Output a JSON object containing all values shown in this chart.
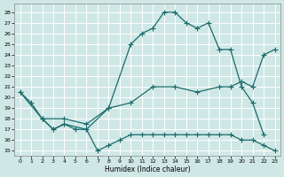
{
  "xlabel": "Humidex (Indice chaleur)",
  "bg_color": "#cfe8e6",
  "grid_color": "#b0d8d4",
  "line_color": "#1a6b6b",
  "xlim_min": -0.5,
  "xlim_max": 23.5,
  "ylim_min": 14.5,
  "ylim_max": 28.8,
  "xticks": [
    0,
    1,
    2,
    3,
    4,
    5,
    6,
    7,
    8,
    9,
    10,
    11,
    12,
    13,
    14,
    15,
    16,
    17,
    18,
    19,
    20,
    21,
    22,
    23
  ],
  "yticks": [
    15,
    16,
    17,
    18,
    19,
    20,
    21,
    22,
    23,
    24,
    25,
    26,
    27,
    28
  ],
  "curve1_x": [
    0,
    1,
    2,
    3,
    4,
    6,
    8,
    10,
    11,
    12,
    13,
    14,
    15,
    16,
    17,
    18,
    19,
    20,
    21,
    22
  ],
  "curve1_y": [
    20.5,
    19.5,
    18,
    17,
    17.5,
    17,
    19,
    25,
    26,
    26.5,
    28,
    28,
    27,
    26.5,
    27,
    24.5,
    24.5,
    21,
    19.5,
    16.5
  ],
  "curve2_x": [
    0,
    2,
    4,
    6,
    8,
    10,
    12,
    14,
    16,
    18,
    19,
    20,
    21,
    22,
    23
  ],
  "curve2_y": [
    20.5,
    18,
    18,
    17.5,
    19,
    19.5,
    21,
    21,
    20.5,
    21,
    21,
    21.5,
    21,
    24,
    24.5
  ],
  "curve3_x": [
    2,
    3,
    4,
    5,
    6,
    7,
    8,
    9,
    10,
    11,
    12,
    13,
    14,
    15,
    16,
    17,
    18,
    19,
    20,
    21,
    22,
    23
  ],
  "curve3_y": [
    18,
    17,
    17.5,
    17,
    17,
    15,
    15.5,
    16,
    16.5,
    16.5,
    16.5,
    16.5,
    16.5,
    16.5,
    16.5,
    16.5,
    16.5,
    16.5,
    16,
    16,
    15.5,
    15
  ]
}
